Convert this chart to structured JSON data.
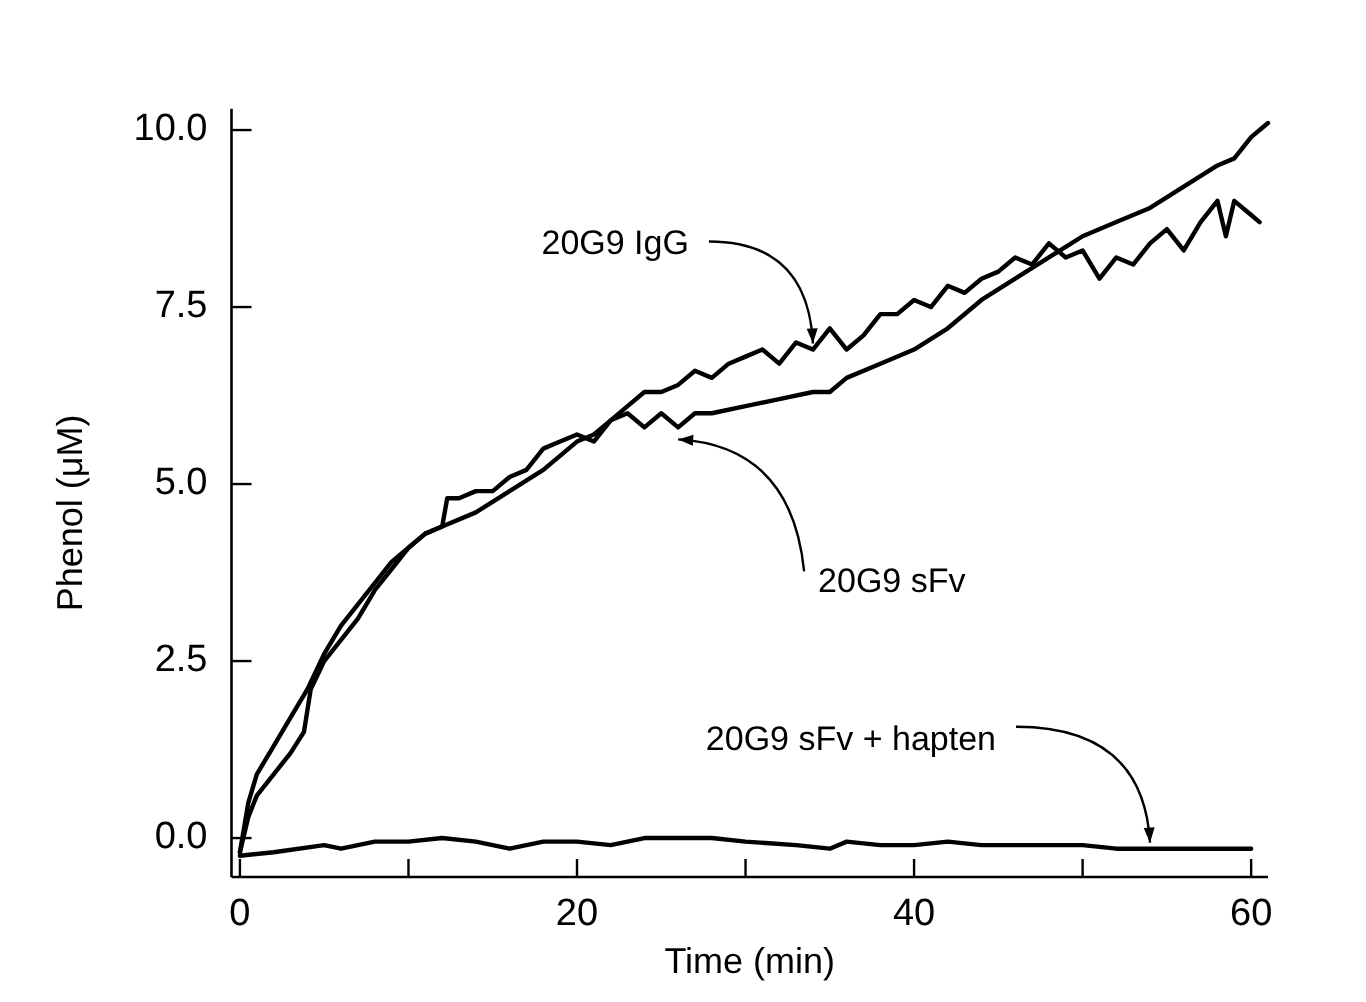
{
  "chart_data": {
    "type": "line",
    "xlabel": "Time (min)",
    "ylabel": "Phenol (μM)",
    "xlim": [
      -0.5,
      61
    ],
    "ylim": [
      -0.55,
      10.3
    ],
    "xticks": [
      0,
      {
        "value": 10,
        "label": null
      },
      20,
      {
        "value": 30,
        "label": null
      },
      40,
      {
        "value": 50,
        "label": null
      },
      60
    ],
    "yticks": [
      {
        "value": 0,
        "label": "0.0"
      },
      2.5,
      {
        "value": 5,
        "label": "5.0"
      },
      7.5,
      {
        "value": 10,
        "label": "10.0"
      }
    ],
    "grid": false,
    "legend": false,
    "marker": "none",
    "line_style": "solid",
    "annotations": [
      {
        "text": "20G9 IgG",
        "x": 34,
        "y": 6.9
      },
      {
        "text": "20G9 sFv",
        "x": 26,
        "y": 5.8
      },
      {
        "text": "20G9 sFv + hapten",
        "x": 54,
        "y": -0.15
      }
    ],
    "series": [
      {
        "color": "#000000",
        "x": [
          0,
          0.5,
          1,
          2,
          3,
          3.8,
          4.2,
          5,
          6,
          7,
          8,
          9,
          10,
          11,
          12,
          12.3,
          13,
          14,
          15,
          16,
          17,
          18,
          19,
          20,
          21,
          22,
          23,
          24,
          25,
          26,
          27,
          28,
          29,
          30,
          31,
          32,
          33,
          34,
          35,
          36,
          37,
          38,
          39,
          40,
          41,
          42,
          43,
          44,
          45,
          46,
          47,
          48,
          49,
          50,
          51,
          52,
          53,
          54,
          55,
          56,
          57,
          58,
          58.5,
          59,
          60,
          60.5
        ],
        "values": [
          -0.2,
          0.3,
          0.6,
          0.9,
          1.2,
          1.5,
          2.1,
          2.5,
          2.8,
          3.1,
          3.5,
          3.8,
          4.1,
          4.3,
          4.4,
          4.8,
          4.8,
          4.9,
          4.9,
          5.1,
          5.2,
          5.5,
          5.6,
          5.7,
          5.6,
          5.9,
          6.1,
          6.3,
          6.3,
          6.4,
          6.6,
          6.5,
          6.7,
          6.8,
          6.9,
          6.7,
          7.0,
          6.9,
          7.2,
          6.9,
          7.1,
          7.4,
          7.4,
          7.6,
          7.5,
          7.8,
          7.7,
          7.9,
          8.0,
          8.2,
          8.1,
          8.4,
          8.2,
          8.3,
          7.9,
          8.2,
          8.1,
          8.4,
          8.6,
          8.3,
          8.7,
          9.0,
          8.5,
          9.0,
          8.8,
          8.7
        ]
      },
      {
        "color": "#000000",
        "x": [
          0,
          0.5,
          1,
          2,
          3,
          4,
          5,
          6,
          7,
          8,
          9,
          10,
          11,
          12,
          14,
          16,
          18,
          20,
          21,
          22,
          23,
          24,
          25,
          26,
          27,
          28,
          30,
          32,
          34,
          35,
          36,
          38,
          40,
          42,
          44,
          46,
          48,
          50,
          52,
          54,
          56,
          58,
          59,
          60,
          61
        ],
        "values": [
          -0.2,
          0.5,
          0.9,
          1.3,
          1.7,
          2.1,
          2.6,
          3.0,
          3.3,
          3.6,
          3.9,
          4.1,
          4.3,
          4.4,
          4.6,
          4.9,
          5.2,
          5.6,
          5.7,
          5.9,
          6.0,
          5.8,
          6.0,
          5.8,
          6.0,
          6.0,
          6.1,
          6.2,
          6.3,
          6.3,
          6.5,
          6.7,
          6.9,
          7.2,
          7.6,
          7.9,
          8.2,
          8.5,
          8.7,
          8.9,
          9.2,
          9.5,
          9.6,
          9.9,
          10.1
        ]
      },
      {
        "color": "#000000",
        "x": [
          0,
          2,
          5,
          6,
          8,
          10,
          12,
          14,
          16,
          18,
          20,
          22,
          24,
          26,
          28,
          30,
          33,
          35,
          36,
          38,
          40,
          42,
          44,
          50,
          52,
          54,
          56,
          60
        ],
        "values": [
          -0.25,
          -0.2,
          -0.1,
          -0.15,
          -0.05,
          -0.05,
          0.0,
          -0.05,
          -0.15,
          -0.05,
          -0.05,
          -0.1,
          0.0,
          0.0,
          0.0,
          -0.05,
          -0.1,
          -0.15,
          -0.05,
          -0.1,
          -0.1,
          -0.05,
          -0.1,
          -0.1,
          -0.15,
          -0.15,
          -0.15,
          -0.15
        ]
      }
    ]
  }
}
